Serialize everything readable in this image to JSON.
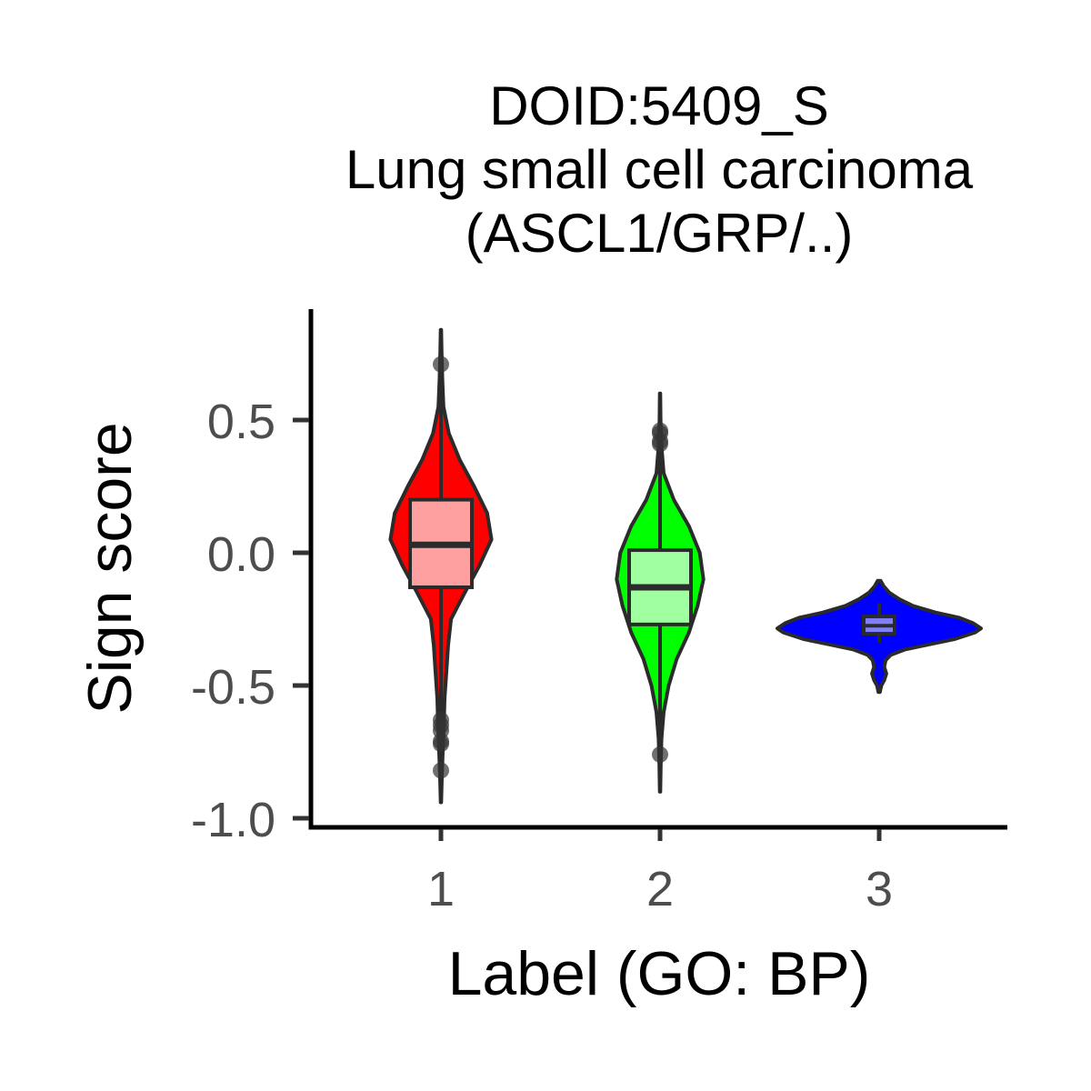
{
  "chart_data": {
    "type": "violin",
    "title_lines": [
      "DOID:5409_S",
      "Lung small cell carcinoma",
      "(ASCL1/GRP/..)"
    ],
    "xlabel": "Label (GO: BP)",
    "ylabel": "Sign score",
    "categories": [
      "1",
      "2",
      "3"
    ],
    "ylim": [
      -1.02,
      0.92
    ],
    "yticks": [
      -1.0,
      -0.5,
      0.0,
      0.5
    ],
    "ytick_labels": [
      "-1.0",
      "-0.5",
      "0.0",
      "0.5"
    ],
    "grid": false,
    "legend": "none",
    "groups": [
      {
        "label": "1",
        "fill": "#ff0000",
        "box_fill": "#ffa0a0",
        "whisker_low": -0.94,
        "q1": -0.13,
        "median": 0.03,
        "q3": 0.2,
        "whisker_high": 0.84,
        "outliers": [
          0.71,
          -0.63,
          -0.65,
          -0.67,
          -0.71,
          -0.72,
          -0.82
        ],
        "density": [
          [
            -0.94,
            0.004
          ],
          [
            -0.85,
            0.012
          ],
          [
            -0.75,
            0.025
          ],
          [
            -0.65,
            0.04
          ],
          [
            -0.55,
            0.05
          ],
          [
            -0.45,
            0.075
          ],
          [
            -0.35,
            0.1
          ],
          [
            -0.25,
            0.14
          ],
          [
            -0.15,
            0.33
          ],
          [
            -0.05,
            0.53
          ],
          [
            0.05,
            0.7
          ],
          [
            0.15,
            0.64
          ],
          [
            0.25,
            0.46
          ],
          [
            0.35,
            0.26
          ],
          [
            0.45,
            0.11
          ],
          [
            0.55,
            0.035
          ],
          [
            0.65,
            0.02
          ],
          [
            0.75,
            0.01
          ],
          [
            0.84,
            0.004
          ]
        ]
      },
      {
        "label": "2",
        "fill": "#00ff00",
        "box_fill": "#a0ffa0",
        "whisker_low": -0.9,
        "q1": -0.27,
        "median": -0.13,
        "q3": 0.01,
        "whisker_high": 0.6,
        "outliers": [
          0.46,
          0.45,
          0.42,
          0.41,
          -0.76
        ],
        "density": [
          [
            -0.9,
            0.004
          ],
          [
            -0.8,
            0.01
          ],
          [
            -0.7,
            0.02
          ],
          [
            -0.6,
            0.05
          ],
          [
            -0.5,
            0.12
          ],
          [
            -0.4,
            0.23
          ],
          [
            -0.3,
            0.4
          ],
          [
            -0.2,
            0.52
          ],
          [
            -0.1,
            0.6
          ],
          [
            0.0,
            0.55
          ],
          [
            0.1,
            0.4
          ],
          [
            0.2,
            0.19
          ],
          [
            0.3,
            0.05
          ],
          [
            0.4,
            0.02
          ],
          [
            0.5,
            0.008
          ],
          [
            0.6,
            0.004
          ]
        ]
      },
      {
        "label": "3",
        "fill": "#0000ff",
        "box_fill": "#8080ff",
        "whisker_low": -0.34,
        "q1": -0.305,
        "median": -0.275,
        "q3": -0.24,
        "whisker_high": -0.19,
        "outliers": [],
        "density": [
          [
            -0.525,
            0.01
          ],
          [
            -0.5,
            0.03
          ],
          [
            -0.48,
            0.07
          ],
          [
            -0.455,
            0.1
          ],
          [
            -0.43,
            0.07
          ],
          [
            -0.405,
            0.09
          ],
          [
            -0.385,
            0.16
          ],
          [
            -0.365,
            0.35
          ],
          [
            -0.345,
            0.7
          ],
          [
            -0.325,
            1.05
          ],
          [
            -0.3,
            1.33
          ],
          [
            -0.285,
            1.41
          ],
          [
            -0.265,
            1.3
          ],
          [
            -0.245,
            1.11
          ],
          [
            -0.225,
            0.78
          ],
          [
            -0.2,
            0.47
          ],
          [
            -0.175,
            0.28
          ],
          [
            -0.15,
            0.14
          ],
          [
            -0.125,
            0.06
          ],
          [
            -0.105,
            0.02
          ]
        ]
      }
    ]
  }
}
